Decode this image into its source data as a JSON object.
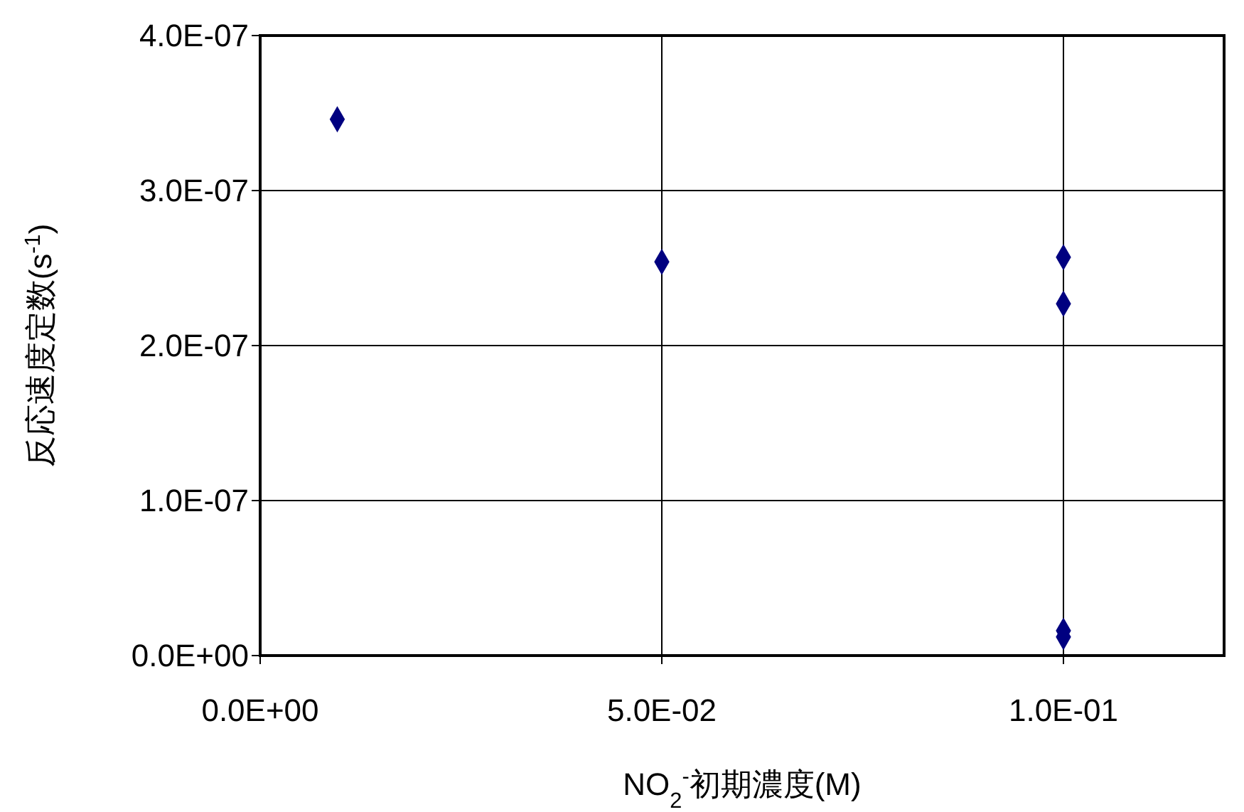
{
  "chart_data": {
    "type": "scatter",
    "xlabel": "NO$_{2}$$^{-}$初期濃度(M)",
    "ylabel": "反応速度定数(s$^{-1}$)",
    "x": [
      0.0096,
      0.05,
      0.1,
      0.1,
      0.1,
      0.1
    ],
    "series": [
      {
        "color": "#000080",
        "values": [
          3.46e-07,
          2.54e-07,
          2.57e-07,
          2.27e-07,
          1.6e-08,
          1.2e-08
        ]
      }
    ],
    "xlim": [
      0,
      0.12
    ],
    "xticks": [
      {
        "value": 0,
        "label": "0.0E+00"
      },
      {
        "value": 0.05,
        "label": "5.0E-02"
      },
      {
        "value": 0.1,
        "label": "1.0E-01"
      }
    ],
    "ylim": [
      0,
      4e-07
    ],
    "yticks": [
      {
        "value": 0,
        "label": "0.0E+00"
      },
      {
        "value": 1e-07,
        "label": "1.0E-07"
      },
      {
        "value": 2e-07,
        "label": "2.0E-07"
      },
      {
        "value": 3e-07,
        "label": "3.0E-07"
      },
      {
        "value": 4e-07,
        "label": "4.0E-07"
      }
    ],
    "grid": true,
    "marker": "diamond"
  }
}
